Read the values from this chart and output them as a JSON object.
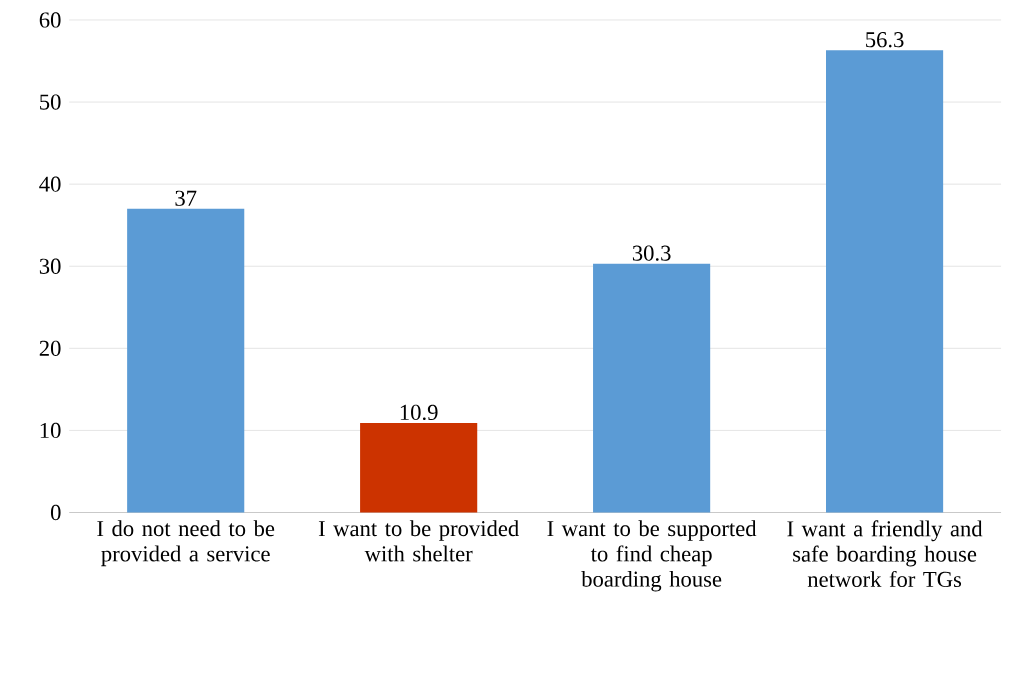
{
  "chart_data": {
    "type": "bar",
    "categories": [
      "I do not need to be provided a service",
      "I want to be provided with shelter",
      "I want to be supported to find cheap boarding house",
      "I want a friendly and safe boarding house network for TGs"
    ],
    "values": [
      37,
      10.9,
      30.3,
      56.3
    ],
    "colors": [
      "#5b9bd5",
      "#cc3300",
      "#5b9bd5",
      "#5b9bd5"
    ],
    "ylim": [
      0,
      60
    ],
    "yticks": [
      0,
      10,
      20,
      30,
      40,
      50,
      60
    ],
    "grid": "y",
    "data_labels": true
  }
}
